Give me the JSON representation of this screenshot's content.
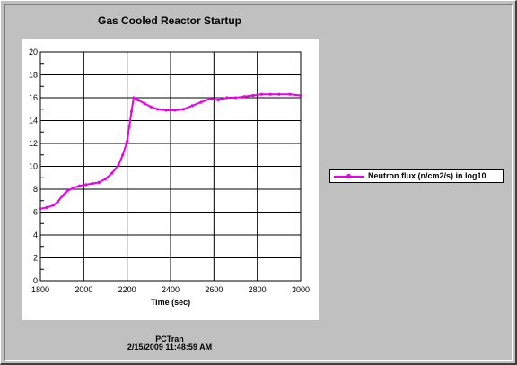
{
  "chart_data": {
    "type": "line",
    "title": "Gas Cooled Reactor Startup",
    "xlabel": "Time (sec)",
    "ylabel": "",
    "xlim": [
      1800,
      3000
    ],
    "ylim": [
      0,
      20
    ],
    "x_ticks": [
      "1800",
      "2000",
      "2200",
      "2400",
      "2600",
      "2800",
      "3000"
    ],
    "y_ticks": [
      "0",
      "2",
      "4",
      "6",
      "8",
      "10",
      "12",
      "14",
      "16",
      "18",
      "20"
    ],
    "grid": true,
    "legend_position": "right",
    "series": [
      {
        "name": "Neutron flux (n/cm2/s) in log10",
        "color": "#e800e8",
        "points": [
          [
            1800,
            6.3
          ],
          [
            1830,
            6.4
          ],
          [
            1860,
            6.6
          ],
          [
            1880,
            6.9
          ],
          [
            1900,
            7.4
          ],
          [
            1920,
            7.8
          ],
          [
            1950,
            8.1
          ],
          [
            1980,
            8.3
          ],
          [
            2010,
            8.4
          ],
          [
            2040,
            8.5
          ],
          [
            2070,
            8.6
          ],
          [
            2100,
            8.9
          ],
          [
            2130,
            9.4
          ],
          [
            2160,
            10.1
          ],
          [
            2180,
            11.0
          ],
          [
            2200,
            12.2
          ],
          [
            2210,
            13.5
          ],
          [
            2220,
            14.8
          ],
          [
            2230,
            16.0
          ],
          [
            2250,
            15.8
          ],
          [
            2280,
            15.5
          ],
          [
            2310,
            15.2
          ],
          [
            2340,
            15.0
          ],
          [
            2380,
            14.9
          ],
          [
            2420,
            14.9
          ],
          [
            2460,
            15.0
          ],
          [
            2500,
            15.3
          ],
          [
            2540,
            15.6
          ],
          [
            2580,
            15.9
          ],
          [
            2620,
            15.8
          ],
          [
            2660,
            16.0
          ],
          [
            2700,
            16.0
          ],
          [
            2740,
            16.1
          ],
          [
            2780,
            16.2
          ],
          [
            2820,
            16.3
          ],
          [
            2860,
            16.3
          ],
          [
            2900,
            16.3
          ],
          [
            2950,
            16.3
          ],
          [
            3000,
            16.2
          ]
        ]
      }
    ]
  },
  "footer": {
    "app": "PCTran",
    "timestamp": "2/15/2009 11:48:59 AM"
  }
}
